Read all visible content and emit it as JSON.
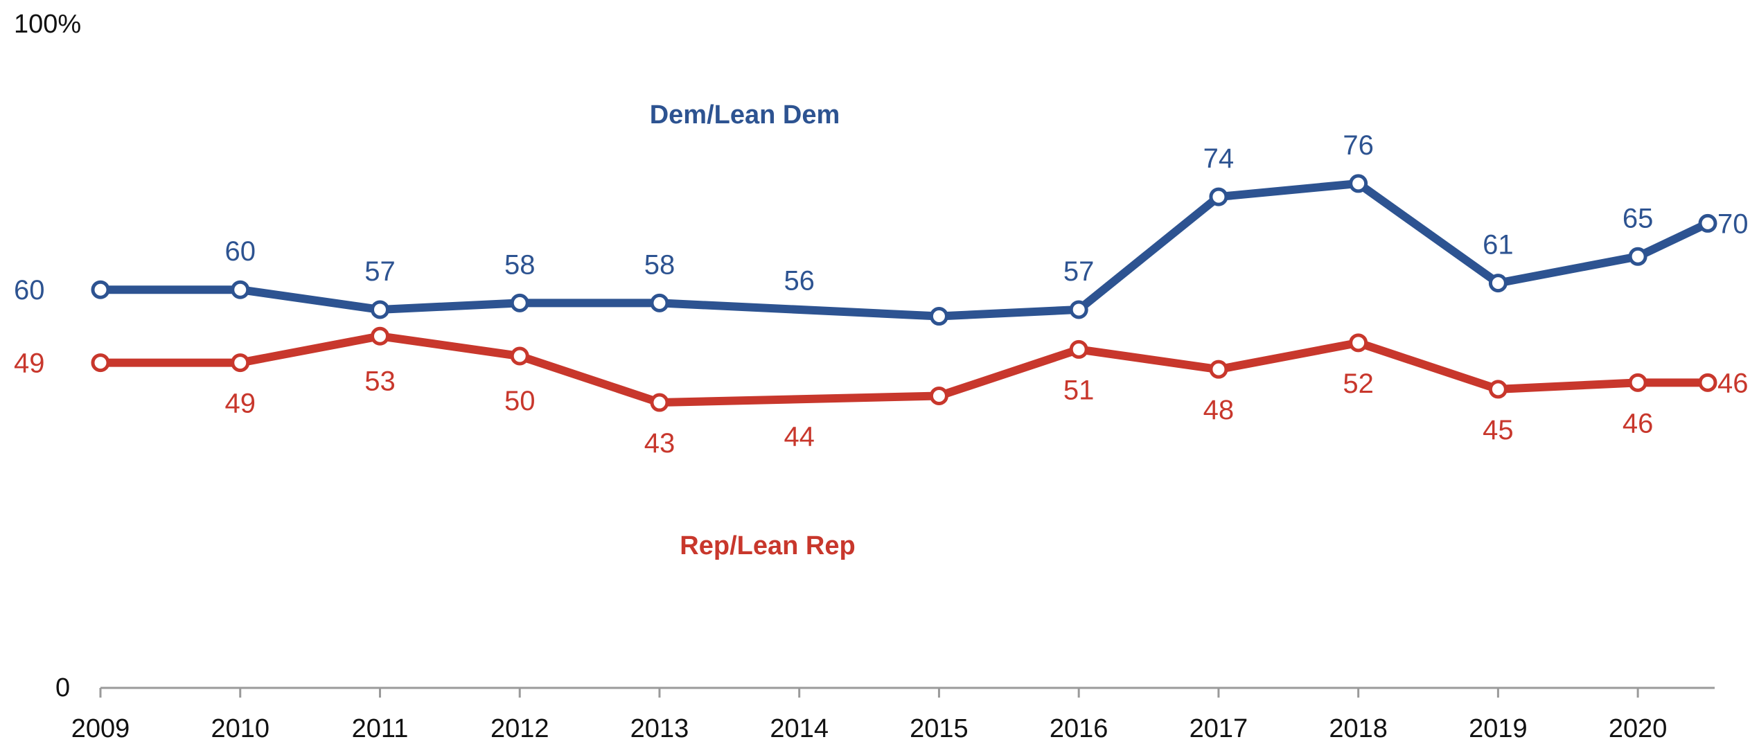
{
  "colors": {
    "dem": "#2d5391",
    "rep": "#c8372c",
    "axis": "#9a9a9a",
    "text": "#111111"
  },
  "chart_data": {
    "type": "line",
    "title": "",
    "xlabel": "",
    "ylabel": "",
    "ylim": [
      0,
      100
    ],
    "xlim": [
      2009,
      2020.5
    ],
    "y_tick_labels": [
      "100%",
      "0"
    ],
    "x_tick_labels": [
      "2009",
      "2010",
      "2011",
      "2012",
      "2013",
      "2014",
      "2015",
      "2016",
      "2017",
      "2018",
      "2019",
      "2020"
    ],
    "x_ticks": [
      2009,
      2010,
      2011,
      2012,
      2013,
      2014,
      2015,
      2016,
      2017,
      2018,
      2019,
      2020
    ],
    "series": [
      {
        "name": "Dem/Lean Dem",
        "color_key": "dem",
        "x": [
          2009,
          2010,
          2011,
          2012,
          2013,
          2015,
          2016,
          2017,
          2018,
          2019,
          2020,
          2020.5
        ],
        "values": [
          60,
          60,
          57,
          58,
          58,
          56,
          57,
          74,
          76,
          61,
          65,
          70
        ],
        "labels": [
          {
            "x": 2009,
            "text": "60"
          },
          {
            "x": 2010,
            "text": "60"
          },
          {
            "x": 2011,
            "text": "57"
          },
          {
            "x": 2012,
            "text": "58"
          },
          {
            "x": 2013,
            "text": "58"
          },
          {
            "x": 2014,
            "text": "56"
          },
          {
            "x": 2016,
            "text": "57"
          },
          {
            "x": 2017,
            "text": "74"
          },
          {
            "x": 2018,
            "text": "76"
          },
          {
            "x": 2019,
            "text": "61"
          },
          {
            "x": 2020,
            "text": "65"
          },
          {
            "x": 2020.5,
            "text": "70"
          }
        ]
      },
      {
        "name": "Rep/Lean Rep",
        "color_key": "rep",
        "x": [
          2009,
          2010,
          2011,
          2012,
          2013,
          2015,
          2016,
          2017,
          2018,
          2019,
          2020,
          2020.5
        ],
        "values": [
          49,
          49,
          53,
          50,
          43,
          44,
          51,
          48,
          52,
          45,
          46,
          46
        ],
        "labels": [
          {
            "x": 2009,
            "text": "49"
          },
          {
            "x": 2010,
            "text": "49"
          },
          {
            "x": 2011,
            "text": "53"
          },
          {
            "x": 2012,
            "text": "50"
          },
          {
            "x": 2013,
            "text": "43"
          },
          {
            "x": 2014,
            "text": "44"
          },
          {
            "x": 2016,
            "text": "51"
          },
          {
            "x": 2017,
            "text": "48"
          },
          {
            "x": 2018,
            "text": "52"
          },
          {
            "x": 2019,
            "text": "45"
          },
          {
            "x": 2020,
            "text": "46"
          },
          {
            "x": 2020.5,
            "text": "46"
          }
        ]
      }
    ]
  }
}
